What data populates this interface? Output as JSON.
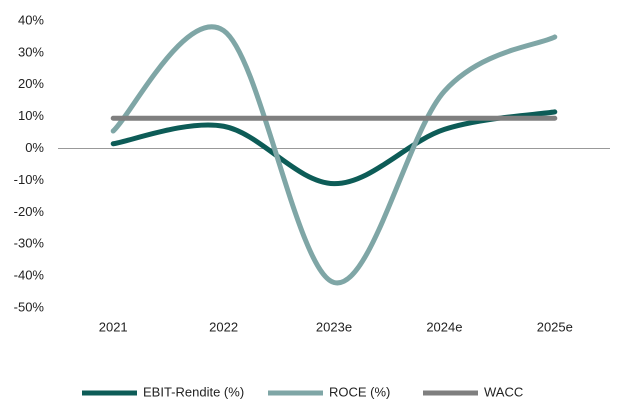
{
  "chart_data": {
    "type": "line",
    "categories": [
      "2021",
      "2022",
      "2023e",
      "2024e",
      "2025e"
    ],
    "series": [
      {
        "name": "EBIT-Rendite (%)",
        "color": "#0d5c57",
        "values": [
          1.5,
          7,
          -11,
          6,
          11.5
        ]
      },
      {
        "name": "ROCE (%)",
        "color": "#7fa6a6",
        "values": [
          5.5,
          37,
          -42,
          18,
          35
        ]
      },
      {
        "name": "WACC",
        "color": "#7f7f7f",
        "values": [
          9.5,
          9.5,
          9.5,
          9.5,
          9.5
        ]
      }
    ],
    "ylim": [
      -50,
      40
    ],
    "yticks": [
      {
        "value": -50,
        "label": "-50%"
      },
      {
        "value": -40,
        "label": "-40%"
      },
      {
        "value": -30,
        "label": "-30%"
      },
      {
        "value": -20,
        "label": "-20%"
      },
      {
        "value": -10,
        "label": "-10%"
      },
      {
        "value": 0,
        "label": "0%"
      },
      {
        "value": 10,
        "label": "10%"
      },
      {
        "value": 20,
        "label": "20%"
      },
      {
        "value": 30,
        "label": "30%"
      },
      {
        "value": 40,
        "label": "40%"
      }
    ],
    "legend": "bottom"
  }
}
